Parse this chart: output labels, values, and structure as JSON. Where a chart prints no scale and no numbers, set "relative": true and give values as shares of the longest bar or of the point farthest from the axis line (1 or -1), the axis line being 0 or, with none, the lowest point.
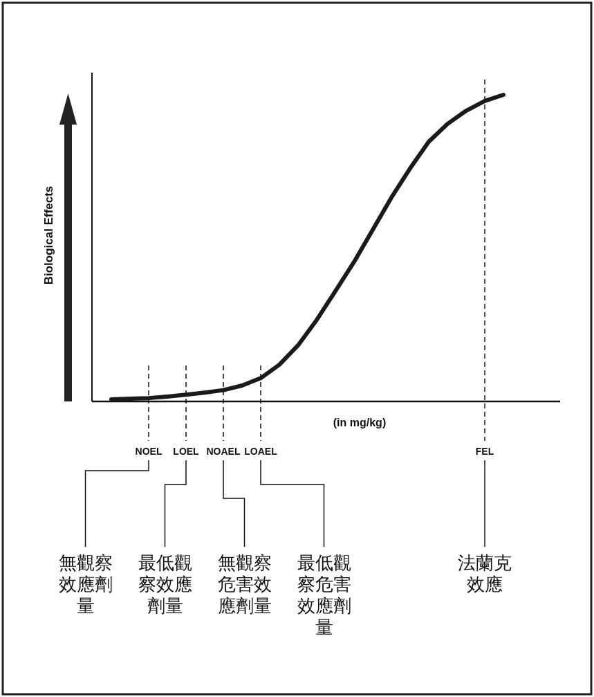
{
  "chart_data": {
    "type": "line",
    "relative": true,
    "xlabel": "(in mg/kg)",
    "ylabel": "Biological Effects",
    "line_style": "solid",
    "categories": [
      null,
      null,
      "NOEL",
      null,
      "LOEL",
      null,
      "NOAEL",
      null,
      "LOAEL",
      null,
      null,
      null,
      null,
      null,
      null,
      null,
      null,
      null,
      null,
      null,
      "FEL",
      null,
      null
    ],
    "series": [
      {
        "color": "#1a1a1a",
        "values": [
          0.007,
          0.009,
          0.011,
          0.016,
          0.022,
          0.029,
          0.037,
          0.052,
          0.076,
          0.12,
          0.183,
          0.266,
          0.36,
          0.455,
          0.56,
          0.665,
          0.76,
          0.847,
          0.905,
          0.948,
          0.98,
          1.0,
          null
        ]
      }
    ],
    "ref_lines": [
      {
        "axis": "x",
        "value": "NOEL",
        "line_style": "dashed"
      },
      {
        "axis": "x",
        "value": "LOEL",
        "line_style": "dashed"
      },
      {
        "axis": "x",
        "value": "NOAEL",
        "line_style": "dashed"
      },
      {
        "axis": "x",
        "value": "LOAEL",
        "line_style": "dashed"
      },
      {
        "axis": "x",
        "value": "FEL",
        "line_style": "dashed"
      }
    ],
    "annotations": [
      {
        "text": "無觀察效應劑量",
        "x": "NOEL"
      },
      {
        "text": "最低觀察效應劑量",
        "x": "LOEL"
      },
      {
        "text": "無觀察危害效應劑量",
        "x": "NOAEL"
      },
      {
        "text": "最低觀察危害效應劑量",
        "x": "LOAEL"
      },
      {
        "text": "法蘭克效應",
        "x": "FEL"
      }
    ]
  }
}
